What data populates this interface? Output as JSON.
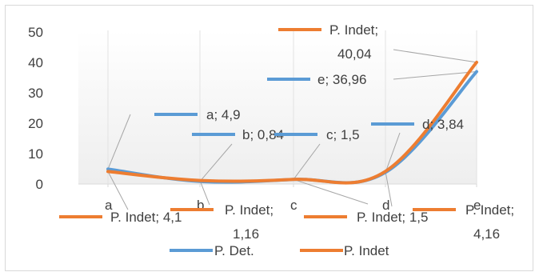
{
  "chart_data": {
    "type": "line",
    "title": "",
    "xlabel": "",
    "ylabel": "",
    "categories": [
      "a",
      "b",
      "c",
      "d",
      "e"
    ],
    "ylim": [
      0,
      50
    ],
    "yticks": [
      "0",
      "10",
      "20",
      "30",
      "40",
      "50"
    ],
    "grid": false,
    "legend_position": "bottom",
    "series": [
      {
        "name": "P. Det.",
        "color": "#5B9BD5",
        "values": [
          4.9,
          0.84,
          1.5,
          3.84,
          36.96
        ],
        "data_labels": [
          "a; 4,9",
          "b; 0,84",
          "c; 1,5",
          "d; 3,84",
          "e; 36,96"
        ]
      },
      {
        "name": "P. Indet",
        "color": "#ED7D31",
        "values": [
          4.1,
          1.16,
          1.5,
          4.16,
          40.04
        ],
        "data_labels": [
          "P. Indet; 4,1",
          "P. Indet; 1,16",
          "P. Indet; 1,5",
          "P. Indet; 4,16",
          "P. Indet; 40,04"
        ]
      }
    ]
  }
}
